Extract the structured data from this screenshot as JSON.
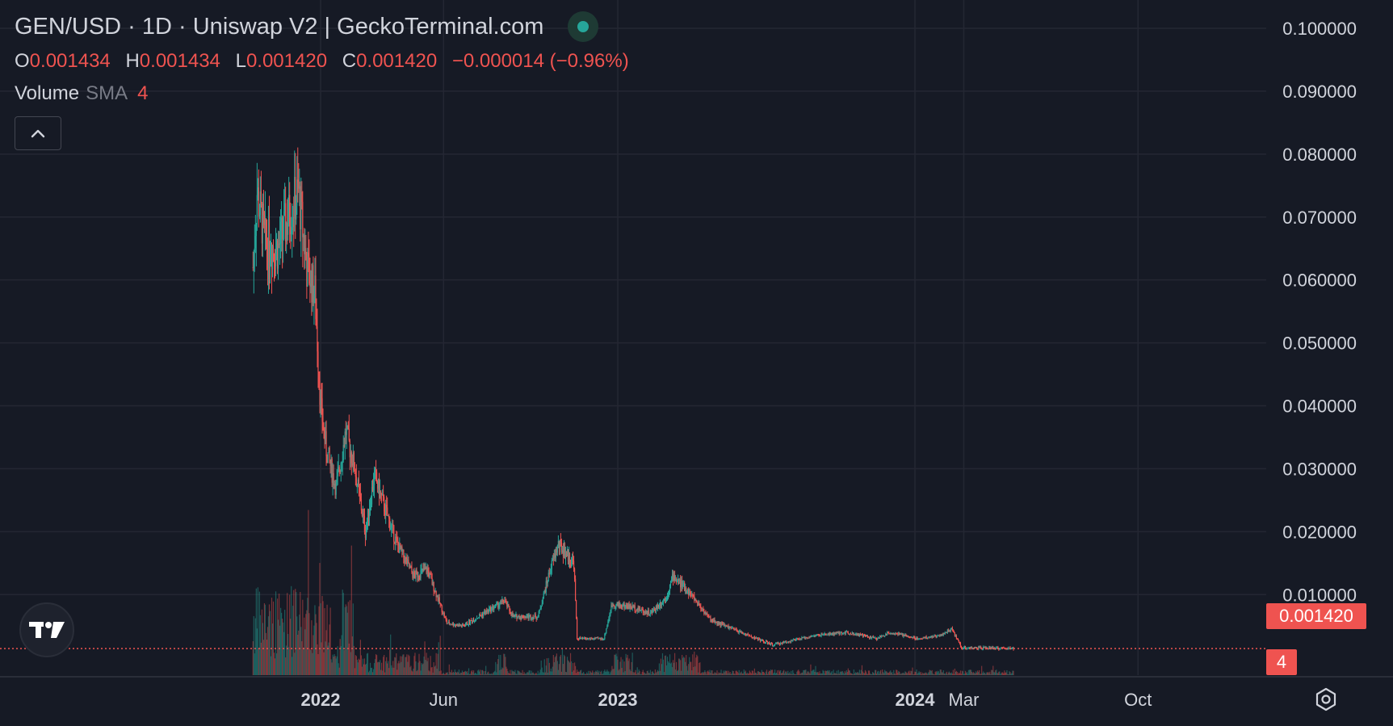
{
  "header": {
    "title": "GEN/USD · 1D · Uniswap V2 | GeckoTerminal.com",
    "ohlc": {
      "o_label": "O",
      "o_value": "0.001434",
      "h_label": "H",
      "h_value": "0.001434",
      "l_label": "L",
      "l_value": "0.001420",
      "c_label": "C",
      "c_value": "0.001420",
      "change": "−0.000014 (−0.96%)"
    },
    "volume": {
      "label": "Volume",
      "sma": "SMA",
      "length": "4"
    }
  },
  "last_price_label": "0.001420",
  "volume_tag": "4",
  "icons": {
    "collapse": "chevron-up-icon",
    "logo": "tradingview-logo-icon",
    "settings": "gear-icon",
    "live": "live-status-icon"
  },
  "colors": {
    "background": "#161a25",
    "up": "#26a69a",
    "down": "#ef5350",
    "grid": "#242733",
    "text": "#d1d4dc"
  },
  "chart_data": {
    "type": "candlestick",
    "interval": "1D",
    "y_axis": {
      "ticks": [
        "0.100000",
        "0.090000",
        "0.080000",
        "0.070000",
        "0.060000",
        "0.050000",
        "0.040000",
        "0.030000",
        "0.020000",
        "0.010000"
      ],
      "ylim": [
        -0.0028,
        0.1
      ]
    },
    "x_axis": {
      "ticks": [
        "2022",
        "Jun",
        "2023",
        "2024",
        "Mar",
        "Oct"
      ]
    },
    "grid": true,
    "last_price": 0.00142,
    "series": [
      {
        "name": "GEN/USD",
        "approx_close_path": [
          [
            "2021-10-10",
            0.062
          ],
          [
            "2021-10-15",
            0.074
          ],
          [
            "2021-10-25",
            0.066
          ],
          [
            "2021-11-10",
            0.065
          ],
          [
            "2021-11-25",
            0.071
          ],
          [
            "2021-12-05",
            0.074
          ],
          [
            "2021-12-15",
            0.062
          ],
          [
            "2021-12-25",
            0.058
          ],
          [
            "2022-01-01",
            0.04
          ],
          [
            "2022-01-08",
            0.033
          ],
          [
            "2022-01-20",
            0.027
          ],
          [
            "2022-02-01",
            0.036
          ],
          [
            "2022-02-12",
            0.03
          ],
          [
            "2022-02-25",
            0.02
          ],
          [
            "2022-03-08",
            0.029
          ],
          [
            "2022-03-20",
            0.024
          ],
          [
            "2022-04-05",
            0.018
          ],
          [
            "2022-04-25",
            0.013
          ],
          [
            "2022-05-12",
            0.014
          ],
          [
            "2022-06-05",
            0.0055
          ],
          [
            "2022-06-25",
            0.005
          ],
          [
            "2022-07-20",
            0.007
          ],
          [
            "2022-08-15",
            0.009
          ],
          [
            "2022-08-25",
            0.0065
          ],
          [
            "2022-09-25",
            0.0065
          ],
          [
            "2022-10-10",
            0.014
          ],
          [
            "2022-10-20",
            0.018
          ],
          [
            "2022-11-08",
            0.015
          ],
          [
            "2022-11-12",
            0.003
          ],
          [
            "2022-12-15",
            0.003
          ],
          [
            "2022-12-25",
            0.0085
          ],
          [
            "2023-01-20",
            0.008
          ],
          [
            "2023-02-10",
            0.007
          ],
          [
            "2023-03-01",
            0.0095
          ],
          [
            "2023-03-10",
            0.013
          ],
          [
            "2023-04-01",
            0.01
          ],
          [
            "2023-04-25",
            0.006
          ],
          [
            "2023-06-01",
            0.004
          ],
          [
            "2023-07-10",
            0.002
          ],
          [
            "2023-09-01",
            0.0035
          ],
          [
            "2023-10-10",
            0.004
          ],
          [
            "2023-11-15",
            0.003
          ],
          [
            "2023-12-01",
            0.004
          ],
          [
            "2024-01-05",
            0.003
          ],
          [
            "2024-02-01",
            0.0035
          ],
          [
            "2024-02-15",
            0.0045
          ],
          [
            "2024-02-28",
            0.0015
          ],
          [
            "2024-04-01",
            0.0015
          ],
          [
            "2024-05-01",
            0.00142
          ]
        ]
      }
    ]
  }
}
